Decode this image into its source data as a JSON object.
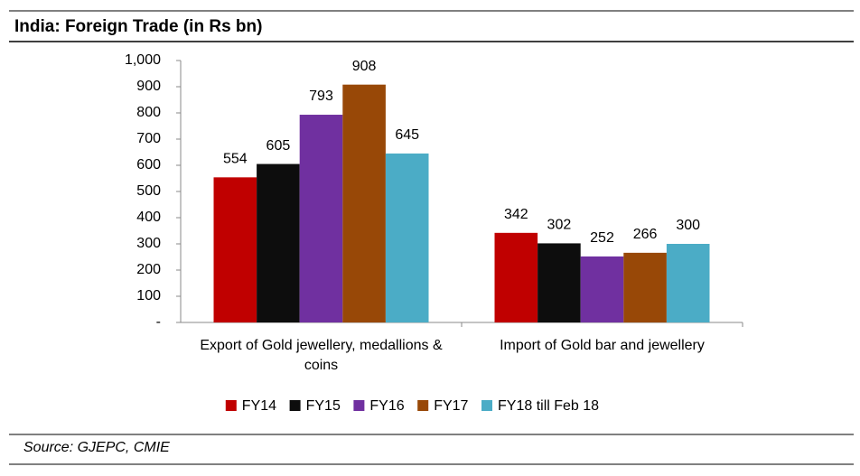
{
  "chart_data": {
    "type": "bar",
    "title": "India: Foreign Trade (in Rs bn)",
    "source": "Source: GJEPC, CMIE",
    "categories": [
      "Export of Gold jewellery, medallions & coins",
      "Import of Gold bar and jewellery"
    ],
    "series": [
      {
        "name": "FY14",
        "color": "#c00000",
        "values": [
          554,
          342
        ]
      },
      {
        "name": "FY15",
        "color": "#0d0d0d",
        "values": [
          605,
          302
        ]
      },
      {
        "name": "FY16",
        "color": "#7030a0",
        "values": [
          793,
          252
        ]
      },
      {
        "name": "FY17",
        "color": "#984807",
        "values": [
          908,
          266
        ]
      },
      {
        "name": "FY18 till Feb 18",
        "color": "#4bacc6",
        "values": [
          645,
          300
        ]
      }
    ],
    "ylim": [
      0,
      1000
    ],
    "yticks": [
      {
        "value": 0,
        "label": "-"
      },
      100,
      200,
      300,
      400,
      500,
      600,
      700,
      800,
      900,
      {
        "value": 1000,
        "label": "1,000"
      }
    ],
    "grid": false,
    "legend": "bottom"
  }
}
